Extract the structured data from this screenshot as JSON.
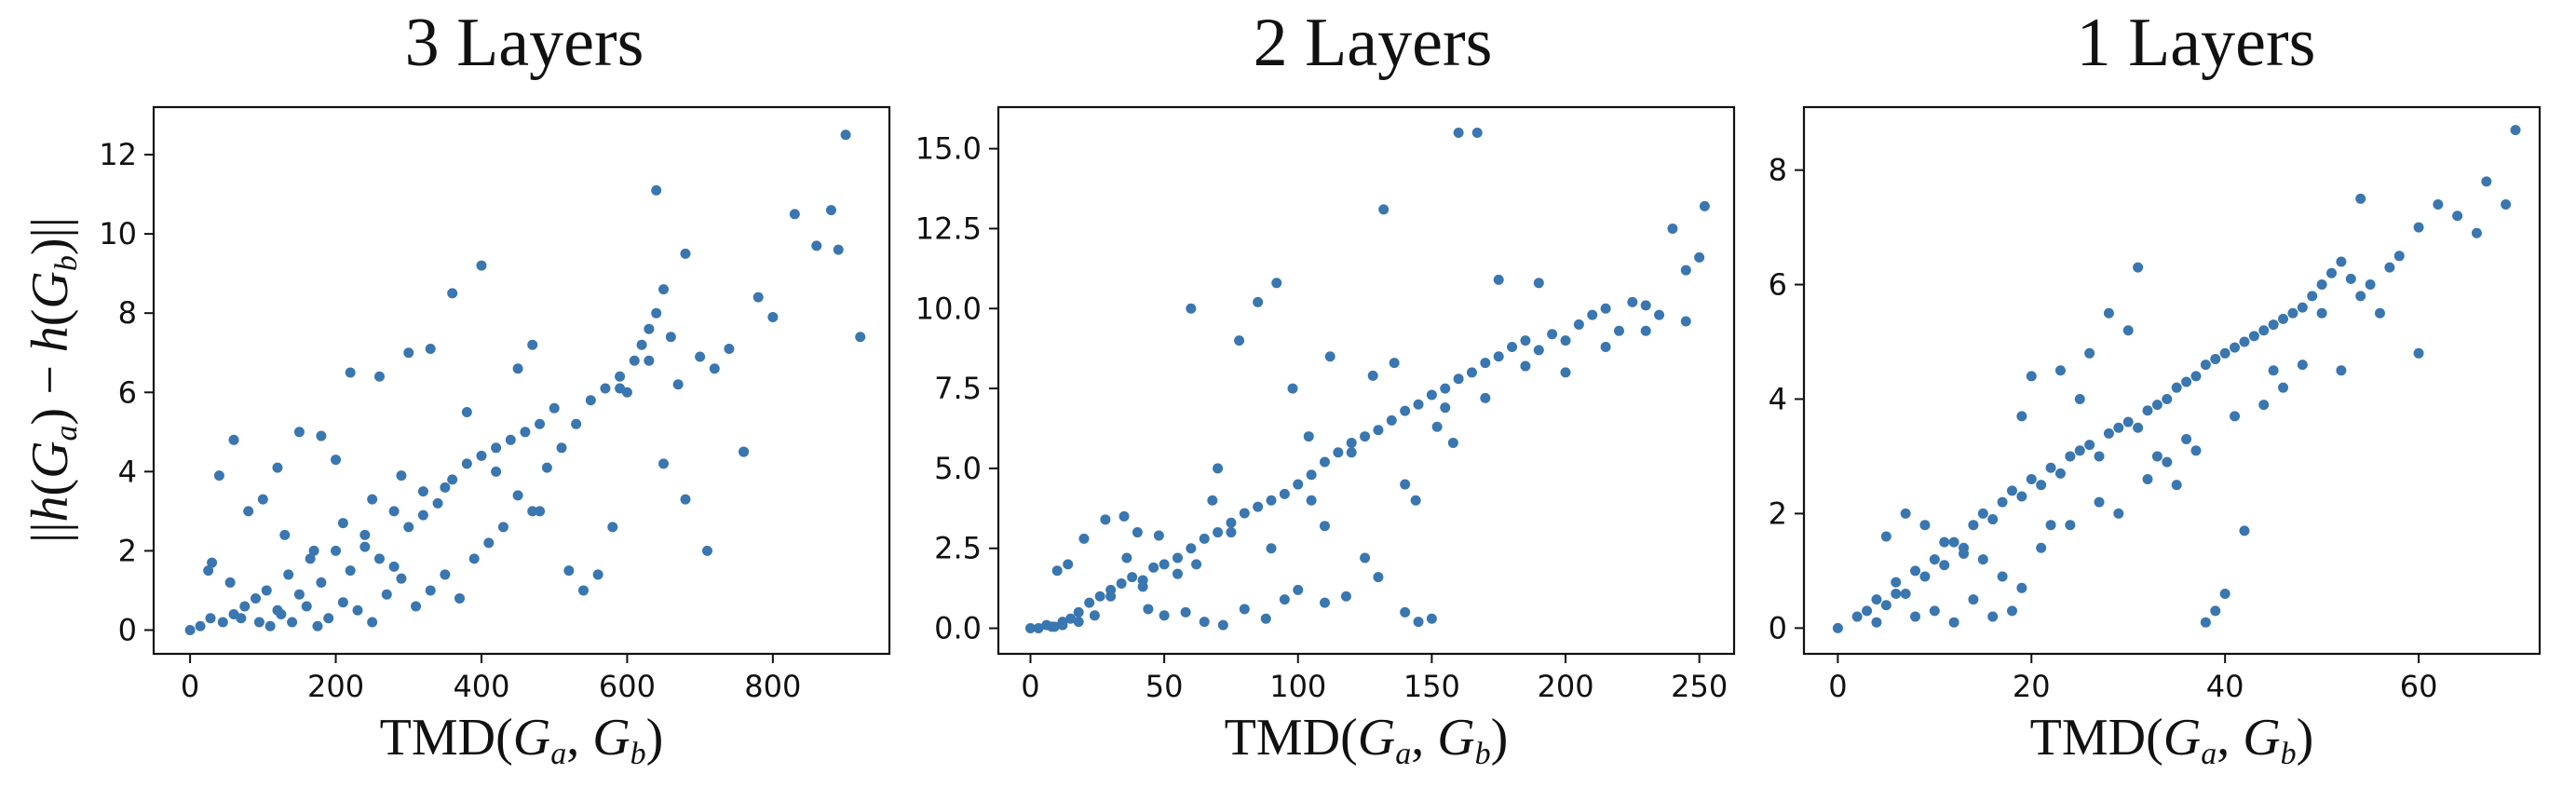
{
  "chart_data": [
    {
      "type": "scatter",
      "title": "3 Layers",
      "xlabel": "TMD(G_a, G_b)",
      "ylabel": "||h(G_a) − h(G_b)||",
      "xlim": [
        -50,
        960
      ],
      "ylim": [
        -0.6,
        13.2
      ],
      "xticks": [
        0,
        200,
        400,
        600,
        800
      ],
      "yticks": [
        0,
        2,
        4,
        6,
        8,
        10,
        12
      ],
      "ytick_labels": [
        "0",
        "2",
        "4",
        "6",
        "8",
        "10",
        "12"
      ],
      "grid": false,
      "series": [
        {
          "color": "#3a76af",
          "x": [
            0,
            14,
            28,
            45,
            60,
            75,
            90,
            105,
            120,
            135,
            150,
            165,
            180,
            200,
            220,
            240,
            260,
            280,
            300,
            320,
            340,
            360,
            380,
            400,
            420,
            440,
            460,
            480,
            500,
            30,
            55,
            70,
            95,
            110,
            125,
            140,
            160,
            175,
            190,
            210,
            230,
            250,
            270,
            290,
            310,
            330,
            350,
            370,
            390,
            410,
            430,
            450,
            470,
            490,
            510,
            530,
            550,
            570,
            590,
            610,
            620,
            630,
            640,
            650,
            660,
            670,
            680,
            700,
            720,
            740,
            760,
            780,
            800,
            830,
            860,
            880,
            900,
            920,
            890,
            640,
            400,
            360,
            330,
            680,
            710,
            760,
            630,
            650,
            600,
            480,
            520,
            540,
            560,
            580,
            590,
            450,
            470,
            420,
            380,
            300,
            260,
            220,
            180,
            150,
            120,
            100,
            80,
            60,
            40,
            25,
            200,
            240,
            280,
            320,
            350,
            130,
            170,
            210,
            250,
            290
          ],
          "y": [
            0,
            0.1,
            0.3,
            0.2,
            0.4,
            0.6,
            0.8,
            1,
            0.5,
            1.4,
            0.9,
            1.8,
            1.2,
            2.0,
            1.5,
            2.4,
            1.8,
            3.0,
            2.6,
            3.5,
            3.2,
            3.8,
            4.2,
            4.4,
            4.6,
            4.8,
            5.0,
            5.2,
            5.6,
            1.7,
            1.2,
            0.3,
            0.2,
            0.1,
            0.4,
            0.2,
            0.6,
            0.1,
            0.3,
            0.7,
            0.5,
            0.2,
            0.9,
            1.3,
            0.6,
            1.0,
            1.4,
            0.8,
            1.8,
            2.2,
            2.6,
            3.4,
            3.0,
            4.1,
            4.6,
            5.2,
            5.8,
            6.1,
            6.4,
            6.8,
            7.2,
            7.6,
            8.0,
            8.6,
            7.4,
            6.2,
            9.5,
            6.9,
            6.6,
            7.1,
            4.5,
            8.4,
            7.9,
            10.5,
            9.7,
            10.6,
            12.5,
            7.4,
            9.6,
            11.1,
            9.2,
            8.5,
            7.1,
            3.3,
            2.0,
            4.5,
            6.8,
            4.2,
            6.0,
            3.0,
            1.5,
            1.0,
            1.4,
            2.6,
            6.1,
            6.6,
            7.2,
            4.0,
            5.5,
            7.0,
            6.4,
            6.5,
            4.9,
            5.0,
            4.1,
            3.3,
            3.0,
            4.8,
            3.9,
            1.5,
            4.3,
            2.1,
            1.6,
            2.9,
            3.6,
            2.4,
            2.0,
            2.7,
            3.3,
            3.9
          ],
          "marker": "circle"
        }
      ]
    },
    {
      "type": "scatter",
      "title": "2 Layers",
      "xlabel": "TMD(G_a, G_b)",
      "ylabel": "",
      "xlim": [
        -12,
        263
      ],
      "ylim": [
        -0.8,
        16.3
      ],
      "xticks": [
        0,
        50,
        100,
        150,
        200,
        250
      ],
      "yticks": [
        0,
        2.5,
        5.0,
        7.5,
        10.0,
        12.5,
        15.0
      ],
      "ytick_labels": [
        "0.0",
        "2.5",
        "5.0",
        "7.5",
        "10.0",
        "12.5",
        "15.0"
      ],
      "grid": false,
      "series": [
        {
          "color": "#3a76af",
          "x": [
            0,
            3,
            6,
            9,
            12,
            15,
            18,
            22,
            26,
            30,
            34,
            38,
            42,
            46,
            50,
            55,
            60,
            65,
            70,
            75,
            80,
            85,
            90,
            95,
            100,
            105,
            110,
            115,
            120,
            125,
            130,
            135,
            140,
            145,
            150,
            155,
            160,
            165,
            170,
            175,
            180,
            185,
            190,
            195,
            200,
            205,
            210,
            215,
            220,
            225,
            230,
            235,
            240,
            245,
            250,
            252,
            160,
            167,
            132,
            175,
            190,
            140,
            150,
            145,
            130,
            125,
            118,
            110,
            100,
            95,
            88,
            80,
            72,
            65,
            58,
            50,
            44,
            40,
            35,
            28,
            20,
            14,
            10,
            60,
            70,
            78,
            85,
            92,
            98,
            104,
            112,
            120,
            128,
            136,
            144,
            152,
            158,
            110,
            105,
            90,
            75,
            68,
            62,
            55,
            48,
            42,
            36,
            30,
            24,
            18,
            12,
            8,
            140,
            155,
            170,
            185,
            200,
            215,
            230,
            245
          ],
          "y": [
            0,
            0,
            0.1,
            0.05,
            0.2,
            0.3,
            0.5,
            0.8,
            1.0,
            1.2,
            1.4,
            1.6,
            1.5,
            1.9,
            2.0,
            2.2,
            2.5,
            2.8,
            3.0,
            3.3,
            3.6,
            3.8,
            4.0,
            4.2,
            4.5,
            4.8,
            5.2,
            5.5,
            5.8,
            6.0,
            6.2,
            6.5,
            6.8,
            7.0,
            7.3,
            7.5,
            7.8,
            8.0,
            8.3,
            8.5,
            8.8,
            9.0,
            8.7,
            9.2,
            9.0,
            9.5,
            9.8,
            10.0,
            9.3,
            10.2,
            10.1,
            9.8,
            12.5,
            9.6,
            11.6,
            13.2,
            15.5,
            15.5,
            13.1,
            10.9,
            10.8,
            0.5,
            0.3,
            0.2,
            1.6,
            2.2,
            1.0,
            0.8,
            1.2,
            0.9,
            0.3,
            0.6,
            0.1,
            0.2,
            0.5,
            0.4,
            0.6,
            3.0,
            3.5,
            3.4,
            2.8,
            2.0,
            1.8,
            10.0,
            5.0,
            9.0,
            10.2,
            10.8,
            7.5,
            6.0,
            8.5,
            5.5,
            7.9,
            8.3,
            4.0,
            6.3,
            5.8,
            3.2,
            4.0,
            2.5,
            3.0,
            4.0,
            2.0,
            1.7,
            2.9,
            1.3,
            2.2,
            1.0,
            0.4,
            0.2,
            0.1,
            0.05,
            4.5,
            6.9,
            7.2,
            8.2,
            8.0,
            8.8,
            9.3,
            11.2
          ],
          "marker": "circle"
        }
      ]
    },
    {
      "type": "scatter",
      "title": "1 Layers",
      "xlabel": "TMD(G_a, G_b)",
      "ylabel": "",
      "xlim": [
        -3.5,
        72.5
      ],
      "ylim": [
        -0.45,
        9.1
      ],
      "xticks": [
        0,
        20,
        40,
        60
      ],
      "yticks": [
        0,
        2,
        4,
        6,
        8
      ],
      "ytick_labels": [
        "0",
        "2",
        "4",
        "6",
        "8"
      ],
      "grid": false,
      "series": [
        {
          "color": "#3a76af",
          "x": [
            0,
            2,
            3,
            4,
            5,
            6,
            7,
            8,
            9,
            10,
            11,
            12,
            13,
            14,
            15,
            16,
            17,
            18,
            19,
            20,
            21,
            22,
            23,
            24,
            25,
            26,
            27,
            28,
            29,
            30,
            31,
            32,
            33,
            34,
            35,
            36,
            37,
            38,
            39,
            40,
            41,
            42,
            43,
            44,
            45,
            46,
            47,
            48,
            49,
            50,
            51,
            52,
            53,
            54,
            55,
            56,
            58,
            60,
            62,
            64,
            66,
            67,
            69,
            70,
            60,
            54,
            42,
            38,
            39,
            40,
            35,
            31,
            28,
            26,
            23,
            20,
            18,
            16,
            14,
            12,
            10,
            8,
            6,
            4,
            5,
            7,
            9,
            11,
            13,
            15,
            17,
            19,
            21,
            24,
            27,
            29,
            32,
            34,
            36,
            44,
            46,
            48,
            50,
            52,
            57,
            19,
            22,
            25,
            30,
            33,
            37,
            41,
            45
          ],
          "y": [
            0,
            0.2,
            0.3,
            0.5,
            0.4,
            0.8,
            0.6,
            1.0,
            0.9,
            1.2,
            1.1,
            1.5,
            1.4,
            1.8,
            2.0,
            1.9,
            2.2,
            2.4,
            2.3,
            2.6,
            2.5,
            2.8,
            2.7,
            3.0,
            3.1,
            3.2,
            3.0,
            3.4,
            3.5,
            3.6,
            3.5,
            3.8,
            3.9,
            4.0,
            4.2,
            4.3,
            4.4,
            4.6,
            4.7,
            4.8,
            4.9,
            5.0,
            5.1,
            5.2,
            5.3,
            5.4,
            5.5,
            5.6,
            5.8,
            6.0,
            6.2,
            6.4,
            6.1,
            5.8,
            6.0,
            5.5,
            6.5,
            7.0,
            7.4,
            7.2,
            6.9,
            7.8,
            7.4,
            8.7,
            4.8,
            7.5,
            1.7,
            0.1,
            0.3,
            0.6,
            2.5,
            6.3,
            5.5,
            4.8,
            4.5,
            4.4,
            0.3,
            0.2,
            0.5,
            0.1,
            0.3,
            0.2,
            0.6,
            0.1,
            1.6,
            2.0,
            1.8,
            1.5,
            1.3,
            1.2,
            0.9,
            0.7,
            1.4,
            1.8,
            2.2,
            2.0,
            2.6,
            2.9,
            3.3,
            3.9,
            4.2,
            4.6,
            5.5,
            4.5,
            6.3,
            3.7,
            1.8,
            4.0,
            5.2,
            3.0,
            3.1,
            3.7,
            4.5
          ],
          "marker": "circle"
        }
      ]
    }
  ]
}
